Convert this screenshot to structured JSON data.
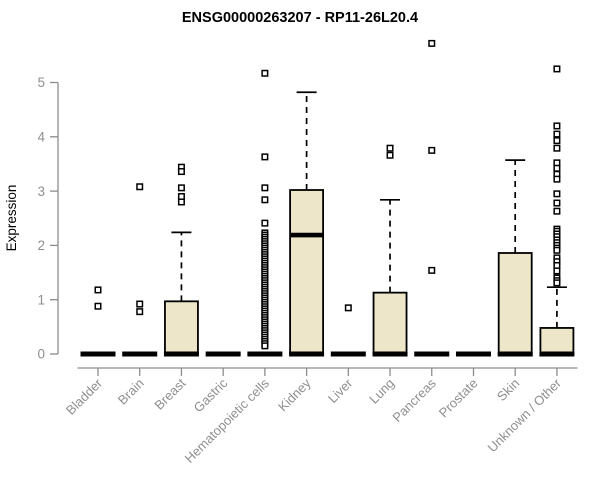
{
  "colors": {
    "box_fill": "#EDE6C8",
    "box_stroke": "#000000",
    "median": "#000000",
    "whisker": "#000000",
    "outlier_stroke": "#000000",
    "outlier_fill": "#ffffff",
    "axis": "#8C8C8C",
    "tick_label": "#8F8F8F",
    "title": "#000000"
  },
  "chart_data": {
    "type": "boxplot",
    "title": "ENSG00000263207 - RP11-26L20.4",
    "xlabel": "",
    "ylabel": "Expression",
    "ylim": [
      0,
      5
    ],
    "yticks": [
      0,
      1,
      2,
      3,
      4,
      5
    ],
    "grid": false,
    "legend": "none",
    "categories": [
      "Bladder",
      "Brain",
      "Breast",
      "Gastric",
      "Hematopoietic cells",
      "Kidney",
      "Liver",
      "Lung",
      "Pancreas",
      "Prostate",
      "Skin",
      "Unknown / Other"
    ],
    "series": [
      {
        "name": "Bladder",
        "whisker_low": 0,
        "q1": 0,
        "median": 0,
        "q3": 0,
        "whisker_high": 0,
        "outliers": [
          1.18,
          0.88
        ]
      },
      {
        "name": "Brain",
        "whisker_low": 0,
        "q1": 0,
        "median": 0,
        "q3": 0,
        "whisker_high": 0,
        "outliers": [
          3.08,
          0.92,
          0.78
        ]
      },
      {
        "name": "Breast",
        "whisker_low": 0,
        "q1": 0,
        "median": 0,
        "q3": 0.97,
        "whisker_high": 2.24,
        "outliers": [
          3.44,
          3.36,
          3.06,
          2.9,
          2.8
        ]
      },
      {
        "name": "Gastric",
        "whisker_low": 0,
        "q1": 0,
        "median": 0,
        "q3": 0,
        "whisker_high": 0,
        "outliers": []
      },
      {
        "name": "Hematopoietic cells",
        "whisker_low": 0,
        "q1": 0,
        "median": 0,
        "q3": 0,
        "whisker_high": 0,
        "outliers": [
          5.17,
          3.63,
          3.06,
          2.84,
          2.41,
          2.23,
          2.19,
          2.15,
          2.11,
          2.07,
          2.03,
          1.99,
          1.95,
          1.91,
          1.87,
          1.83,
          1.79,
          1.75,
          1.71,
          1.67,
          1.63,
          1.59,
          1.55,
          1.51,
          1.47,
          1.43,
          1.39,
          1.35,
          1.31,
          1.27,
          1.23,
          1.19,
          1.15,
          1.11,
          1.07,
          1.03,
          0.99,
          0.95,
          0.91,
          0.87,
          0.83,
          0.79,
          0.75,
          0.71,
          0.67,
          0.63,
          0.59,
          0.55,
          0.51,
          0.47,
          0.43,
          0.39,
          0.35,
          0.31,
          0.27,
          0.23,
          0.19,
          0.15
        ]
      },
      {
        "name": "Kidney",
        "whisker_low": 0,
        "q1": 0,
        "median": 2.19,
        "q3": 3.02,
        "whisker_high": 4.82,
        "outliers": []
      },
      {
        "name": "Liver",
        "whisker_low": 0,
        "q1": 0,
        "median": 0,
        "q3": 0,
        "whisker_high": 0,
        "outliers": [
          0.85
        ]
      },
      {
        "name": "Lung",
        "whisker_low": 0,
        "q1": 0,
        "median": 0,
        "q3": 1.13,
        "whisker_high": 2.84,
        "outliers": [
          3.79,
          3.66
        ]
      },
      {
        "name": "Pancreas",
        "whisker_low": 0,
        "q1": 0,
        "median": 0,
        "q3": 0,
        "whisker_high": 0,
        "outliers": [
          5.72,
          3.75,
          1.54
        ]
      },
      {
        "name": "Prostate",
        "whisker_low": 0,
        "q1": 0,
        "median": 0,
        "q3": 0,
        "whisker_high": 0,
        "outliers": []
      },
      {
        "name": "Skin",
        "whisker_low": 0,
        "q1": 0,
        "median": 0,
        "q3": 1.86,
        "whisker_high": 3.57,
        "outliers": []
      },
      {
        "name": "Unknown / Other",
        "whisker_low": 0,
        "q1": 0,
        "median": 0,
        "q3": 0.48,
        "whisker_high": 1.23,
        "outliers": [
          5.25,
          4.2,
          4.05,
          3.93,
          3.79,
          3.52,
          3.42,
          3.31,
          3.22,
          2.95,
          2.78,
          2.63,
          2.3,
          2.26,
          2.21,
          2.16,
          2.1,
          2.05,
          2.0,
          1.95,
          1.91,
          1.77,
          1.7,
          1.63,
          1.53,
          1.4,
          1.35,
          1.31
        ]
      }
    ]
  }
}
